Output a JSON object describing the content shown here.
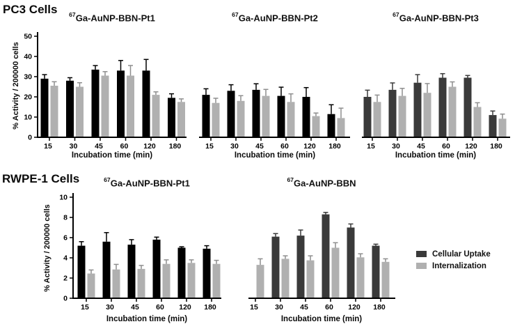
{
  "sections": {
    "pc3": {
      "label": "PC3 Cells"
    },
    "rwpe": {
      "label": "RWPE-1 Cells"
    }
  },
  "legend": {
    "items": [
      {
        "label": "Cellular Uptake",
        "color": "#3a3a3a"
      },
      {
        "label": "Internalization",
        "color": "#b0b0b0"
      }
    ]
  },
  "chart_data": [
    {
      "id": "pc3-pt1",
      "type": "bar",
      "title": {
        "sup": "67",
        "text": "Ga-AuNP-BBN-Pt1"
      },
      "xlabel": "Incubation time (min)",
      "ylabel": "% Activity / 200000 cells",
      "ylim": [
        0,
        50
      ],
      "yticks": [
        0,
        10,
        20,
        30,
        40,
        50
      ],
      "show_y_axis": true,
      "categories": [
        "15",
        "30",
        "45",
        "60",
        "120",
        "180"
      ],
      "series": [
        {
          "name": "Cellular Uptake",
          "color": "#000000",
          "values": [
            29,
            28,
            33.5,
            33,
            33,
            19.5
          ],
          "errors": [
            2,
            1.5,
            2,
            5,
            5.5,
            2
          ]
        },
        {
          "name": "Internalization",
          "color": "#b0b0b0",
          "values": [
            25.5,
            25,
            30.5,
            30.5,
            21,
            17.5
          ],
          "errors": [
            2,
            2,
            2,
            5,
            1.5,
            1.5
          ]
        }
      ]
    },
    {
      "id": "pc3-pt2",
      "type": "bar",
      "title": {
        "sup": "67",
        "text": "Ga-AuNP-BBN-Pt2"
      },
      "xlabel": "Incubation time (min)",
      "ylabel": "",
      "ylim": [
        0,
        50
      ],
      "yticks": [],
      "show_y_axis": false,
      "categories": [
        "15",
        "30",
        "45",
        "60",
        "120",
        "180"
      ],
      "series": [
        {
          "name": "Cellular Uptake",
          "color": "#000000",
          "values": [
            21,
            23,
            23.5,
            20.5,
            20,
            11.5
          ],
          "errors": [
            3,
            3,
            3,
            4.3,
            4.6,
            4.6
          ]
        },
        {
          "name": "Internalization",
          "color": "#b0b0b0",
          "values": [
            17,
            18,
            20.5,
            17.5,
            10.5,
            9.5
          ],
          "errors": [
            2.3,
            2.6,
            3.2,
            4,
            1.5,
            4.9
          ]
        }
      ]
    },
    {
      "id": "pc3-pt3",
      "type": "bar",
      "title": {
        "sup": "67",
        "text": "Ga-AuNP-BBN-Pt3"
      },
      "xlabel": "Incubation time (min)",
      "ylabel": "",
      "ylim": [
        0,
        50
      ],
      "yticks": [],
      "show_y_axis": false,
      "categories": [
        "15",
        "30",
        "45",
        "60",
        "120",
        "180"
      ],
      "series": [
        {
          "name": "Cellular Uptake",
          "color": "#3a3a3a",
          "values": [
            20,
            23.5,
            27,
            29.5,
            29.5,
            11
          ],
          "errors": [
            3.3,
            3.4,
            4,
            2,
            1.1,
            2
          ]
        },
        {
          "name": "Internalization",
          "color": "#b0b0b0",
          "values": [
            17.5,
            20.5,
            22,
            25,
            15,
            9.2
          ],
          "errors": [
            3.4,
            3.7,
            4.6,
            2.4,
            2.1,
            2.3
          ]
        }
      ]
    },
    {
      "id": "rwpe-pt1",
      "type": "bar",
      "title": {
        "sup": "67",
        "text": "Ga-AuNP-BBN-Pt1"
      },
      "xlabel": "Incubation time (min)",
      "ylabel": "% Activity / 200000 cells",
      "ylim": [
        0,
        10
      ],
      "yticks": [
        0,
        2,
        4,
        6,
        8,
        10
      ],
      "show_y_axis": true,
      "categories": [
        "15",
        "30",
        "45",
        "60",
        "120",
        "180"
      ],
      "series": [
        {
          "name": "Cellular Uptake",
          "color": "#000000",
          "values": [
            5.2,
            5.6,
            5.3,
            5.8,
            5.0,
            4.9
          ],
          "errors": [
            0.4,
            0.9,
            0.5,
            0.25,
            0.1,
            0.3
          ]
        },
        {
          "name": "Internalization",
          "color": "#b0b0b0",
          "values": [
            2.45,
            2.85,
            2.9,
            3.4,
            3.5,
            3.4
          ],
          "errors": [
            0.35,
            0.5,
            0.35,
            0.4,
            0.3,
            0.35
          ]
        }
      ]
    },
    {
      "id": "aunp-bbn",
      "type": "bar",
      "title": {
        "sup": "67",
        "text": "Ga-AuNP-BBN"
      },
      "xlabel": "Incubation time (min)",
      "ylabel": "",
      "ylim": [
        0,
        10
      ],
      "yticks": [],
      "show_y_axis": false,
      "categories": [
        "15",
        "30",
        "45",
        "60",
        "120",
        "180"
      ],
      "series": [
        {
          "name": "Cellular Uptake",
          "color": "#3a3a3a",
          "values": [
            null,
            6.1,
            6.2,
            8.3,
            7.0,
            5.2
          ],
          "errors": [
            null,
            0.3,
            0.55,
            0.2,
            0.35,
            0.15
          ]
        },
        {
          "name": "Internalization",
          "color": "#b0b0b0",
          "values": [
            3.3,
            3.9,
            3.75,
            5.0,
            4.05,
            3.6
          ],
          "errors": [
            0.6,
            0.3,
            0.45,
            0.5,
            0.35,
            0.3
          ]
        }
      ]
    }
  ]
}
